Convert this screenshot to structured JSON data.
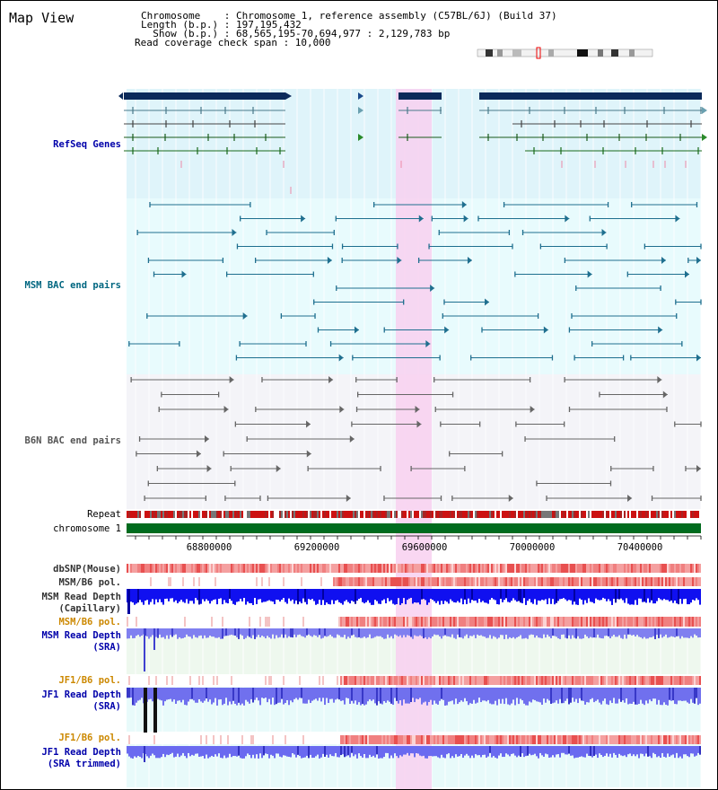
{
  "title": "Map View",
  "info": {
    "chromosome_line": "Chromosome    : Chromosome 1, reference assembly (C57BL/6J) (Build 37)",
    "length_line": "Length (b.p.) : 197,195,432",
    "show_line": "  Show (b.p.) : 68,565,195-70,694,977 : 2,129,783 bp",
    "span_line": "Read coverage check span : 10,000"
  },
  "tracks": {
    "refseq": "RefSeq Genes",
    "msm_bac": "MSM BAC end pairs",
    "b6n_bac": "B6N BAC end pairs",
    "repeat": "Repeat",
    "chromosome": "chromosome 1",
    "dbsnp": "dbSNP(Mouse)",
    "msm_pol1": "MSM/B6 pol.",
    "msm_depth_cap_1": "MSM Read Depth",
    "msm_depth_cap_2": "(Capillary)",
    "msm_pol2": "MSM/B6 pol.",
    "msm_depth_sra_1": "MSM Read Depth",
    "msm_depth_sra_2": "(SRA)",
    "jf1_pol1": "JF1/B6 pol.",
    "jf1_depth_sra_1": "JF1 Read Depth",
    "jf1_depth_sra_2": "(SRA)",
    "jf1_pol2": "JF1/B6 pol.",
    "jf1_depth_trim_1": "JF1 Read Depth",
    "jf1_depth_trim_2": "(SRA trimmed)"
  },
  "axis_ticks": [
    "68800000",
    "69200000",
    "69600000",
    "70000000",
    "70400000"
  ],
  "colors": {
    "refseq_label": "#0000aa",
    "msm_label": "#006680",
    "b6n_label": "#555555",
    "pol_orange": "#cc8800",
    "depth_blue": "#0000aa",
    "highlight": "#f8d8f0"
  }
}
